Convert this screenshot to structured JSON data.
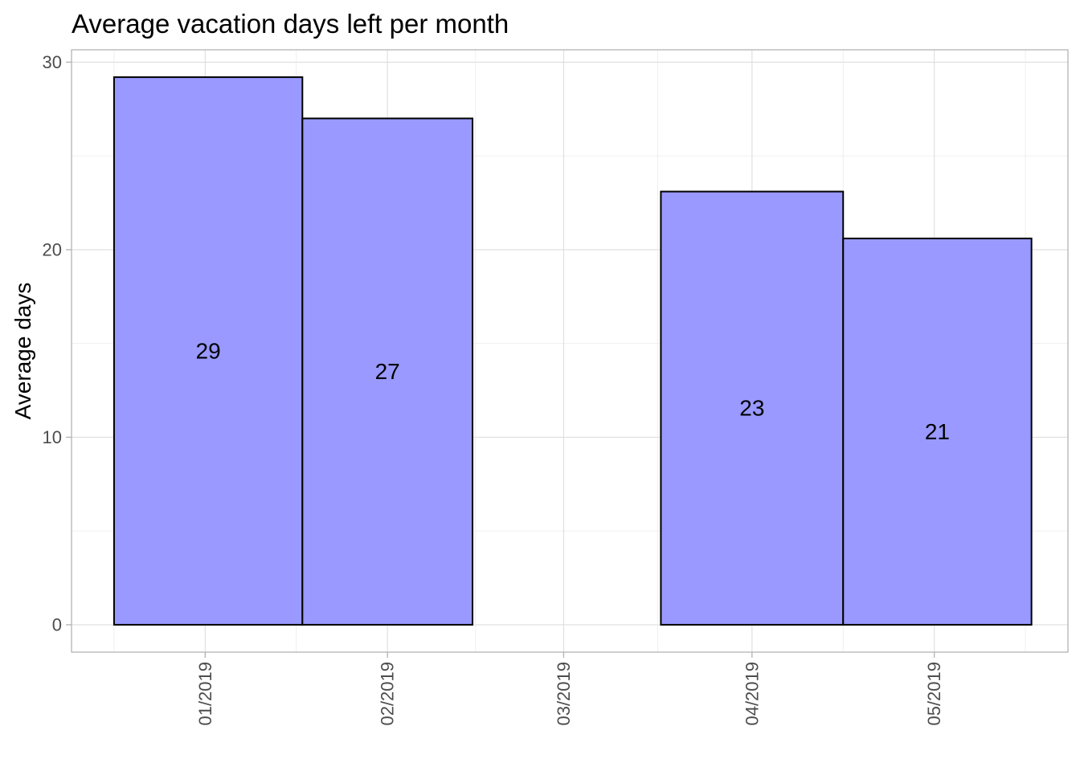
{
  "chart_data": {
    "type": "bar",
    "title": "Average vacation days left per month",
    "xlabel": "",
    "ylabel": "Average days",
    "categories": [
      "01/2019",
      "02/2019",
      "03/2019",
      "04/2019",
      "05/2019"
    ],
    "bars": [
      {
        "start": "2019-01-01",
        "end": "2019-01-31",
        "value": 29.2,
        "label": "29"
      },
      {
        "start": "2019-02-01",
        "end": "2019-02-28",
        "value": 27.0,
        "label": "27"
      },
      {
        "start": "2019-04-01",
        "end": "2019-04-30",
        "value": 23.1,
        "label": "23"
      },
      {
        "start": "2019-05-01",
        "end": "2019-05-31",
        "value": 20.6,
        "label": "21"
      }
    ],
    "x_ticks": [
      {
        "label": "01/2019",
        "date": "2019-01-16"
      },
      {
        "label": "02/2019",
        "date": "2019-02-15"
      },
      {
        "label": "03/2019",
        "date": "2019-03-16"
      },
      {
        "label": "04/2019",
        "date": "2019-04-16"
      },
      {
        "label": "05/2019",
        "date": "2019-05-16"
      }
    ],
    "xlim": [
      "2018-12-25",
      "2019-06-07"
    ],
    "y_ticks": [
      0,
      10,
      20,
      30
    ],
    "ylim": [
      -1.46,
      30.66
    ],
    "grid": true,
    "colors": {
      "bar_fill": "#9999ff",
      "bar_outline": "#000000"
    }
  }
}
